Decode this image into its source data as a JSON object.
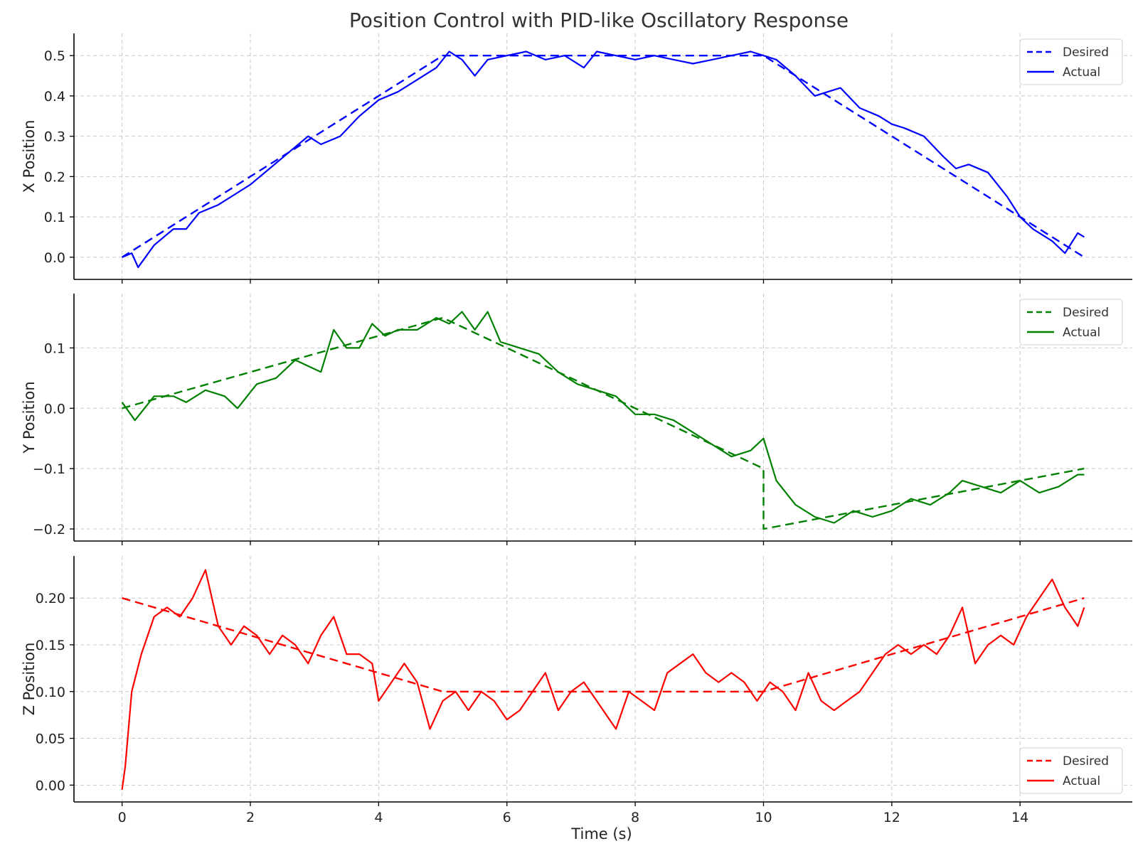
{
  "chart_data": {
    "type": "line",
    "title": "Position Control with PID-like Oscillatory Response",
    "xlabel": "Time (s)",
    "xlim": [
      -0.75,
      15.75
    ],
    "x_ticks": [
      0,
      2,
      4,
      6,
      8,
      10,
      12,
      14
    ],
    "x_tick_labels": [
      "0",
      "2",
      "4",
      "6",
      "8",
      "10",
      "12",
      "14"
    ],
    "grid": true,
    "panels": [
      {
        "ylabel": "X Position",
        "ylim": [
          -0.055,
          0.555
        ],
        "y_ticks": [
          0.0,
          0.1,
          0.2,
          0.3,
          0.4,
          0.5
        ],
        "y_tick_labels": [
          "0.0",
          "0.1",
          "0.2",
          "0.3",
          "0.4",
          "0.5"
        ],
        "legend_position": "top-right",
        "color": "#0000ff",
        "series": [
          {
            "name": "Desired",
            "style": "dashed",
            "x": [
              0,
              5,
              10,
              15
            ],
            "y": [
              0.0,
              0.5,
              0.5,
              0.0
            ]
          },
          {
            "name": "Actual",
            "style": "solid",
            "x": [
              0,
              0.15,
              0.25,
              0.5,
              0.8,
              1.0,
              1.2,
              1.5,
              1.8,
              2.0,
              2.3,
              2.6,
              2.9,
              3.1,
              3.4,
              3.7,
              4.0,
              4.3,
              4.6,
              4.9,
              5.1,
              5.3,
              5.5,
              5.7,
              6.0,
              6.3,
              6.6,
              6.9,
              7.2,
              7.4,
              7.7,
              8.0,
              8.3,
              8.6,
              8.9,
              9.2,
              9.5,
              9.8,
              10.0,
              10.2,
              10.5,
              10.8,
              11.0,
              11.2,
              11.5,
              11.8,
              12.0,
              12.2,
              12.5,
              12.8,
              13.0,
              13.2,
              13.5,
              13.8,
              14.0,
              14.2,
              14.5,
              14.7,
              14.9,
              15.0
            ],
            "y": [
              0.0,
              0.01,
              -0.025,
              0.03,
              0.07,
              0.07,
              0.11,
              0.13,
              0.16,
              0.18,
              0.22,
              0.26,
              0.3,
              0.28,
              0.3,
              0.35,
              0.39,
              0.41,
              0.44,
              0.47,
              0.51,
              0.49,
              0.45,
              0.49,
              0.5,
              0.51,
              0.49,
              0.5,
              0.47,
              0.51,
              0.5,
              0.49,
              0.5,
              0.49,
              0.48,
              0.49,
              0.5,
              0.51,
              0.5,
              0.49,
              0.45,
              0.4,
              0.41,
              0.42,
              0.37,
              0.35,
              0.33,
              0.32,
              0.3,
              0.25,
              0.22,
              0.23,
              0.21,
              0.15,
              0.1,
              0.07,
              0.04,
              0.01,
              0.06,
              0.05
            ]
          }
        ]
      },
      {
        "ylabel": "Y Position",
        "ylim": [
          -0.22,
          0.19
        ],
        "y_ticks": [
          -0.2,
          -0.1,
          0.0,
          0.1
        ],
        "y_tick_labels": [
          "−0.2",
          "−0.1",
          "0.0",
          "0.1"
        ],
        "legend_position": "top-right",
        "color": "#008000",
        "series": [
          {
            "name": "Desired",
            "style": "dashed",
            "x": [
              0,
              5,
              10,
              10,
              15
            ],
            "y": [
              0.0,
              0.15,
              -0.1,
              -0.2,
              -0.1
            ]
          },
          {
            "name": "Actual",
            "style": "solid",
            "x": [
              0,
              0.2,
              0.5,
              0.8,
              1.0,
              1.3,
              1.6,
              1.8,
              2.1,
              2.4,
              2.7,
              2.9,
              3.1,
              3.3,
              3.5,
              3.7,
              3.9,
              4.1,
              4.3,
              4.6,
              4.9,
              5.1,
              5.3,
              5.5,
              5.7,
              5.9,
              6.2,
              6.5,
              6.8,
              7.1,
              7.4,
              7.7,
              8.0,
              8.3,
              8.6,
              8.9,
              9.2,
              9.5,
              9.8,
              10.0,
              10.2,
              10.5,
              10.8,
              11.1,
              11.4,
              11.7,
              12.0,
              12.3,
              12.6,
              12.9,
              13.1,
              13.4,
              13.7,
              14.0,
              14.3,
              14.6,
              14.9,
              15.0
            ],
            "y": [
              0.01,
              -0.02,
              0.02,
              0.02,
              0.01,
              0.03,
              0.02,
              0.0,
              0.04,
              0.05,
              0.08,
              0.07,
              0.06,
              0.13,
              0.1,
              0.1,
              0.14,
              0.12,
              0.13,
              0.13,
              0.15,
              0.14,
              0.16,
              0.13,
              0.16,
              0.11,
              0.1,
              0.09,
              0.06,
              0.04,
              0.03,
              0.02,
              -0.01,
              -0.01,
              -0.02,
              -0.04,
              -0.06,
              -0.08,
              -0.07,
              -0.05,
              -0.12,
              -0.16,
              -0.18,
              -0.19,
              -0.17,
              -0.18,
              -0.17,
              -0.15,
              -0.16,
              -0.14,
              -0.12,
              -0.13,
              -0.14,
              -0.12,
              -0.14,
              -0.13,
              -0.11,
              -0.11
            ]
          }
        ]
      },
      {
        "ylabel": "Z Position",
        "ylim": [
          -0.018,
          0.245
        ],
        "y_ticks": [
          0.0,
          0.05,
          0.1,
          0.15,
          0.2
        ],
        "y_tick_labels": [
          "0.00",
          "0.05",
          "0.10",
          "0.15",
          "0.20"
        ],
        "legend_position": "bottom-right",
        "color": "#ff0000",
        "series": [
          {
            "name": "Desired",
            "style": "dashed",
            "x": [
              0,
              5,
              10,
              15
            ],
            "y": [
              0.2,
              0.1,
              0.1,
              0.2
            ]
          },
          {
            "name": "Actual",
            "style": "solid",
            "x": [
              0,
              0.05,
              0.15,
              0.3,
              0.5,
              0.7,
              0.9,
              1.1,
              1.3,
              1.5,
              1.7,
              1.9,
              2.1,
              2.3,
              2.5,
              2.7,
              2.9,
              3.1,
              3.3,
              3.5,
              3.7,
              3.9,
              4.0,
              4.2,
              4.4,
              4.6,
              4.8,
              5.0,
              5.2,
              5.4,
              5.6,
              5.8,
              6.0,
              6.2,
              6.4,
              6.6,
              6.8,
              7.0,
              7.2,
              7.4,
              7.6,
              7.7,
              7.9,
              8.1,
              8.3,
              8.5,
              8.7,
              8.9,
              9.1,
              9.3,
              9.5,
              9.7,
              9.9,
              10.1,
              10.3,
              10.5,
              10.7,
              10.9,
              11.1,
              11.3,
              11.5,
              11.7,
              11.9,
              12.1,
              12.3,
              12.5,
              12.7,
              12.9,
              13.1,
              13.3,
              13.5,
              13.7,
              13.9,
              14.1,
              14.3,
              14.5,
              14.7,
              14.9,
              15.0
            ],
            "y": [
              -0.005,
              0.02,
              0.1,
              0.14,
              0.18,
              0.19,
              0.18,
              0.2,
              0.23,
              0.17,
              0.15,
              0.17,
              0.16,
              0.14,
              0.16,
              0.15,
              0.13,
              0.16,
              0.18,
              0.14,
              0.14,
              0.13,
              0.09,
              0.11,
              0.13,
              0.11,
              0.06,
              0.09,
              0.1,
              0.08,
              0.1,
              0.09,
              0.07,
              0.08,
              0.1,
              0.12,
              0.08,
              0.1,
              0.11,
              0.09,
              0.07,
              0.06,
              0.1,
              0.09,
              0.08,
              0.12,
              0.13,
              0.14,
              0.12,
              0.11,
              0.12,
              0.11,
              0.09,
              0.11,
              0.1,
              0.08,
              0.12,
              0.09,
              0.08,
              0.09,
              0.1,
              0.12,
              0.14,
              0.15,
              0.14,
              0.15,
              0.14,
              0.16,
              0.19,
              0.13,
              0.15,
              0.16,
              0.15,
              0.18,
              0.2,
              0.22,
              0.19,
              0.17,
              0.19
            ]
          }
        ]
      }
    ]
  }
}
